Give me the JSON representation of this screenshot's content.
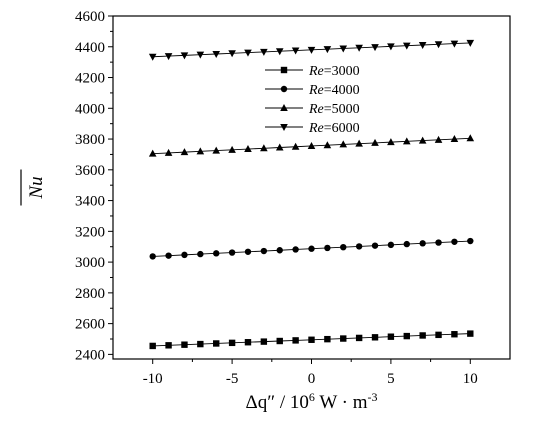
{
  "chart_data": {
    "type": "line",
    "xlabel": {
      "symbol": "Δq″",
      "sep": " / ",
      "base": "10",
      "exp": "6",
      "unit_pre": " W · m",
      "unit_exp": "-3"
    },
    "ylabel": "Nu",
    "xlim": [
      -12.5,
      12.5
    ],
    "ylim": [
      2370,
      4600
    ],
    "xticks": [
      -10,
      -5,
      0,
      5,
      10
    ],
    "xtick_labels": [
      "-10",
      "-5",
      "0",
      "5",
      "10"
    ],
    "yticks": [
      2400,
      2600,
      2800,
      3000,
      3200,
      3400,
      3600,
      3800,
      4000,
      4200,
      4400,
      4600
    ],
    "ytick_labels": [
      "2400",
      "2600",
      "2800",
      "3000",
      "3200",
      "3400",
      "3600",
      "3800",
      "4000",
      "4200",
      "4400",
      "4600"
    ],
    "grid": false,
    "legend_position": "top-center",
    "x": [
      -10,
      -9,
      -8,
      -7,
      -6,
      -5,
      -4,
      -3,
      -2,
      -1,
      0,
      1,
      2,
      3,
      4,
      5,
      6,
      7,
      8,
      9,
      10
    ],
    "series": [
      {
        "name": "Re=3000",
        "name_italic": "Re",
        "name_rest": "=3000",
        "marker": "square",
        "values": [
          2455,
          2459,
          2463,
          2467,
          2471,
          2475,
          2479,
          2483,
          2487,
          2491,
          2495,
          2499,
          2503,
          2507,
          2511,
          2515,
          2519,
          2523,
          2527,
          2531,
          2535
        ]
      },
      {
        "name": "Re=4000",
        "name_italic": "Re",
        "name_rest": "=4000",
        "marker": "circle",
        "values": [
          3037,
          3042,
          3047,
          3052,
          3057,
          3062,
          3067,
          3072,
          3077,
          3082,
          3087,
          3092,
          3097,
          3102,
          3107,
          3112,
          3117,
          3122,
          3127,
          3132,
          3137
        ]
      },
      {
        "name": "Re=5000",
        "name_italic": "Re",
        "name_rest": "=5000",
        "marker": "triangle-up",
        "values": [
          3705,
          3710,
          3715,
          3720,
          3725,
          3730,
          3735,
          3740,
          3745,
          3750,
          3755,
          3760,
          3765,
          3770,
          3775,
          3780,
          3785,
          3790,
          3795,
          3800,
          3805
        ]
      },
      {
        "name": "Re=6000",
        "name_italic": "Re",
        "name_rest": "=6000",
        "marker": "triangle-down",
        "values": [
          4335,
          4339.5,
          4344,
          4348.5,
          4353,
          4357.5,
          4362,
          4366.5,
          4371,
          4375.5,
          4380,
          4384.5,
          4389,
          4393.5,
          4398,
          4402.5,
          4407,
          4411.5,
          4416,
          4420.5,
          4425
        ]
      }
    ]
  }
}
